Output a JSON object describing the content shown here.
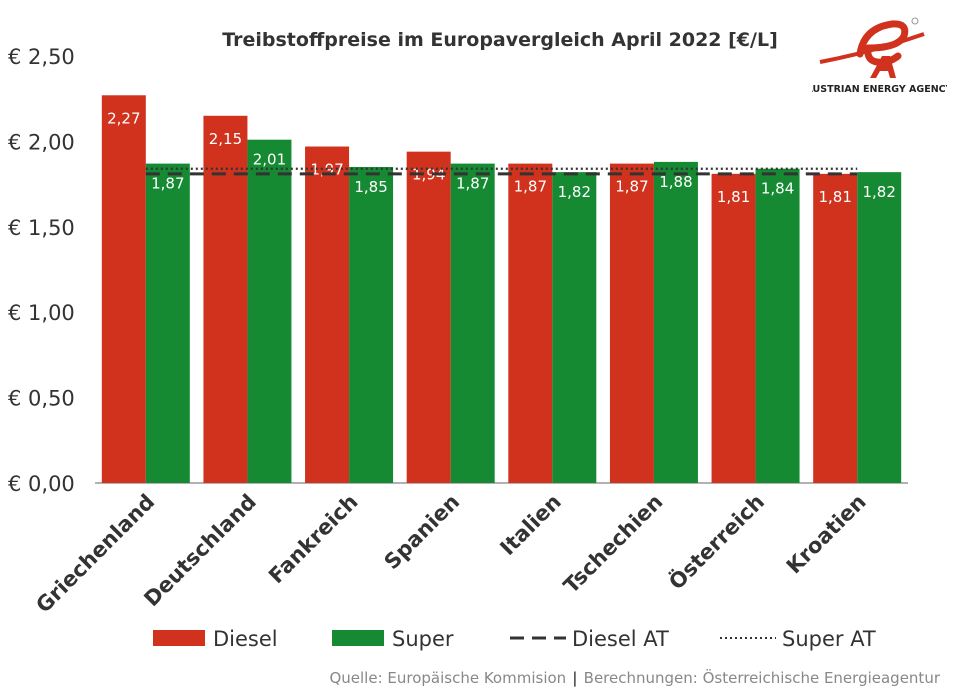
{
  "chart_data": {
    "type": "bar",
    "title": "Treibstoffpreise im Europavergleich  April 2022 [€/L]",
    "categories": [
      "Griechenland",
      "Deutschland",
      "Fankreich",
      "Spanien",
      "Italien",
      "Tschechien",
      "Österreich",
      "Kroatien"
    ],
    "series": [
      {
        "name": "Diesel",
        "color": "#D0321E",
        "values": [
          2.27,
          2.15,
          1.97,
          1.94,
          1.87,
          1.87,
          1.81,
          1.81
        ],
        "labels": [
          "2,27",
          "2,15",
          "1,97",
          "1,94",
          "1,87",
          "1,87",
          "1,81",
          "1,81"
        ]
      },
      {
        "name": "Super",
        "color": "#168A33",
        "values": [
          1.87,
          2.01,
          1.85,
          1.87,
          1.82,
          1.88,
          1.84,
          1.82
        ],
        "labels": [
          "1,87",
          "2,01",
          "1,85",
          "1,87",
          "1,82",
          "1,88",
          "1,84",
          "1,82"
        ]
      }
    ],
    "reference_lines": [
      {
        "name": "Diesel AT",
        "value": 1.81,
        "style": "dashed",
        "color": "#333333"
      },
      {
        "name": "Super AT",
        "value": 1.84,
        "style": "dotted",
        "color": "#333333"
      }
    ],
    "ylim": [
      0,
      2.5
    ],
    "yticks": [
      0,
      0.5,
      1,
      1.5,
      2,
      2.5
    ],
    "ytick_labels": [
      "€ 0,00",
      "€ 0,50",
      "€ 1,00",
      "€ 1,50",
      "€ 2,00",
      "€ 2,50"
    ],
    "legend_position": "bottom",
    "grid": false
  },
  "source": "Quelle: Europäische Kommision",
  "source_sep": "|",
  "source2": "Berechnungen: Österreichische Energieagentur",
  "logo": {
    "text": "AUSTRIAN ENERGY AGENCY",
    "mark": "eA",
    "color": "#D0321E"
  }
}
